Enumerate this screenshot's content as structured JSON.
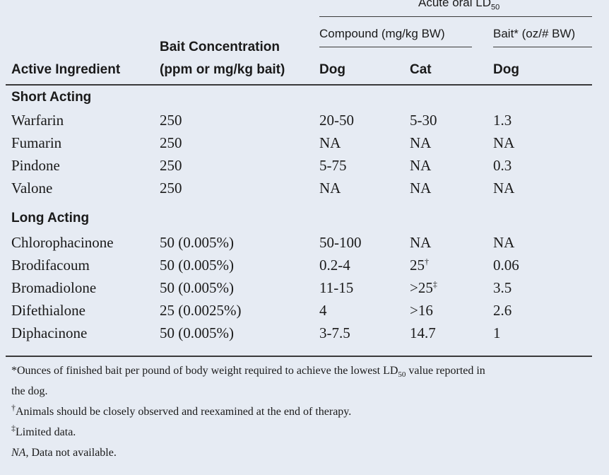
{
  "header": {
    "group_title": "Acute oral LD",
    "group_title_sub": "50",
    "compound_label": "Compound (mg/kg BW)",
    "bait_label_pre": "Bait",
    "bait_label_mark": "*",
    "bait_label_post": " (oz/# BW)",
    "col_ingredient": "Active Ingredient",
    "col_concentration_line1": "Bait Concentration",
    "col_concentration_line2": "(ppm or mg/kg bait)",
    "col_dog": "Dog",
    "col_cat": "Cat",
    "col_bait_dog": "Dog"
  },
  "sections": [
    {
      "title": "Short Acting",
      "rows": [
        {
          "ingredient": "Warfarin",
          "concentration": "250",
          "dog": "20-50",
          "cat": "5-30",
          "cat_mark": "",
          "bait_dog": "1.3"
        },
        {
          "ingredient": "Fumarin",
          "concentration": "250",
          "dog": "NA",
          "cat": "NA",
          "cat_mark": "",
          "bait_dog": "NA"
        },
        {
          "ingredient": "Pindone",
          "concentration": "250",
          "dog": "5-75",
          "cat": "NA",
          "cat_mark": "",
          "bait_dog": "0.3"
        },
        {
          "ingredient": "Valone",
          "concentration": "250",
          "dog": "NA",
          "cat": "NA",
          "cat_mark": "",
          "bait_dog": "NA"
        }
      ]
    },
    {
      "title": "Long Acting",
      "rows": [
        {
          "ingredient": "Chlorophacinone",
          "concentration": "50 (0.005%)",
          "dog": "50-100",
          "cat": "NA",
          "cat_mark": "",
          "bait_dog": "NA"
        },
        {
          "ingredient": "Brodifacoum",
          "concentration": "50 (0.005%)",
          "dog": "0.2-4",
          "cat": "25",
          "cat_mark": "†",
          "bait_dog": "0.06"
        },
        {
          "ingredient": "Bromadiolone",
          "concentration": "50 (0.005%)",
          "dog": "11-15",
          "cat": ">25",
          "cat_mark": "‡",
          "bait_dog": "3.5"
        },
        {
          "ingredient": "Difethialone",
          "concentration": "25 (0.0025%)",
          "dog": "4",
          "cat": ">16",
          "cat_mark": "",
          "bait_dog": "2.6"
        },
        {
          "ingredient": "Diphacinone",
          "concentration": "50 (0.005%)",
          "dog": "3-7.5",
          "cat": "14.7",
          "cat_mark": "",
          "bait_dog": "1"
        }
      ]
    }
  ],
  "footnotes": {
    "n1_a": "*Ounces of finished bait per pound of body weight required to achieve the lowest LD",
    "n1_sub": "50",
    "n1_b": " value reported in",
    "n1_c": "the dog.",
    "n2_mark": "†",
    "n2_text": "Animals should be closely observed and reexamined at the end of therapy.",
    "n3_mark": "‡",
    "n3_text": "Limited data.",
    "n4_abbr": "NA",
    "n4_text": ", Data not available."
  },
  "colors": {
    "background": "#e6ebf3",
    "text": "#1a1a1a",
    "rule": "#3a3a3a"
  }
}
